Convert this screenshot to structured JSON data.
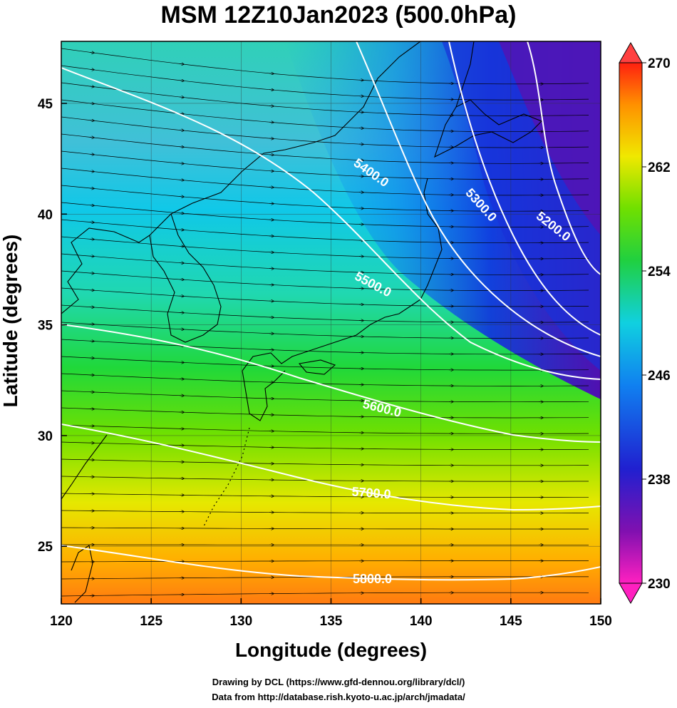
{
  "title": "MSM 12Z10Jan2023 (500.0hPa)",
  "xlabel": "Longitude (degrees)",
  "ylabel": "Latitude  (degrees)",
  "credits": {
    "drawing": "Drawing by DCL (https://www.gfd-dennou.org/library/dcl/)",
    "data": "Data from http://database.rish.kyoto-u.ac.jp/arch/jmadata/"
  },
  "x_ticks": [
    "120",
    "125",
    "130",
    "135",
    "140",
    "145",
    "150"
  ],
  "y_ticks": [
    "25",
    "30",
    "35",
    "40",
    "45"
  ],
  "colorbar": {
    "ticks": [
      "270",
      "262",
      "254",
      "246",
      "238",
      "230"
    ],
    "range": [
      230,
      270
    ]
  },
  "contour_labels": [
    "5200.0",
    "5300.0",
    "5400.0",
    "5500.0",
    "5600.0",
    "5700.0",
    "5800.0"
  ],
  "map_extent": {
    "lon": [
      120,
      150
    ],
    "lat": [
      22.4,
      47.8
    ]
  },
  "colors": {
    "contour": "#ffffff",
    "vector": "#000000",
    "coast": "#000000"
  }
}
